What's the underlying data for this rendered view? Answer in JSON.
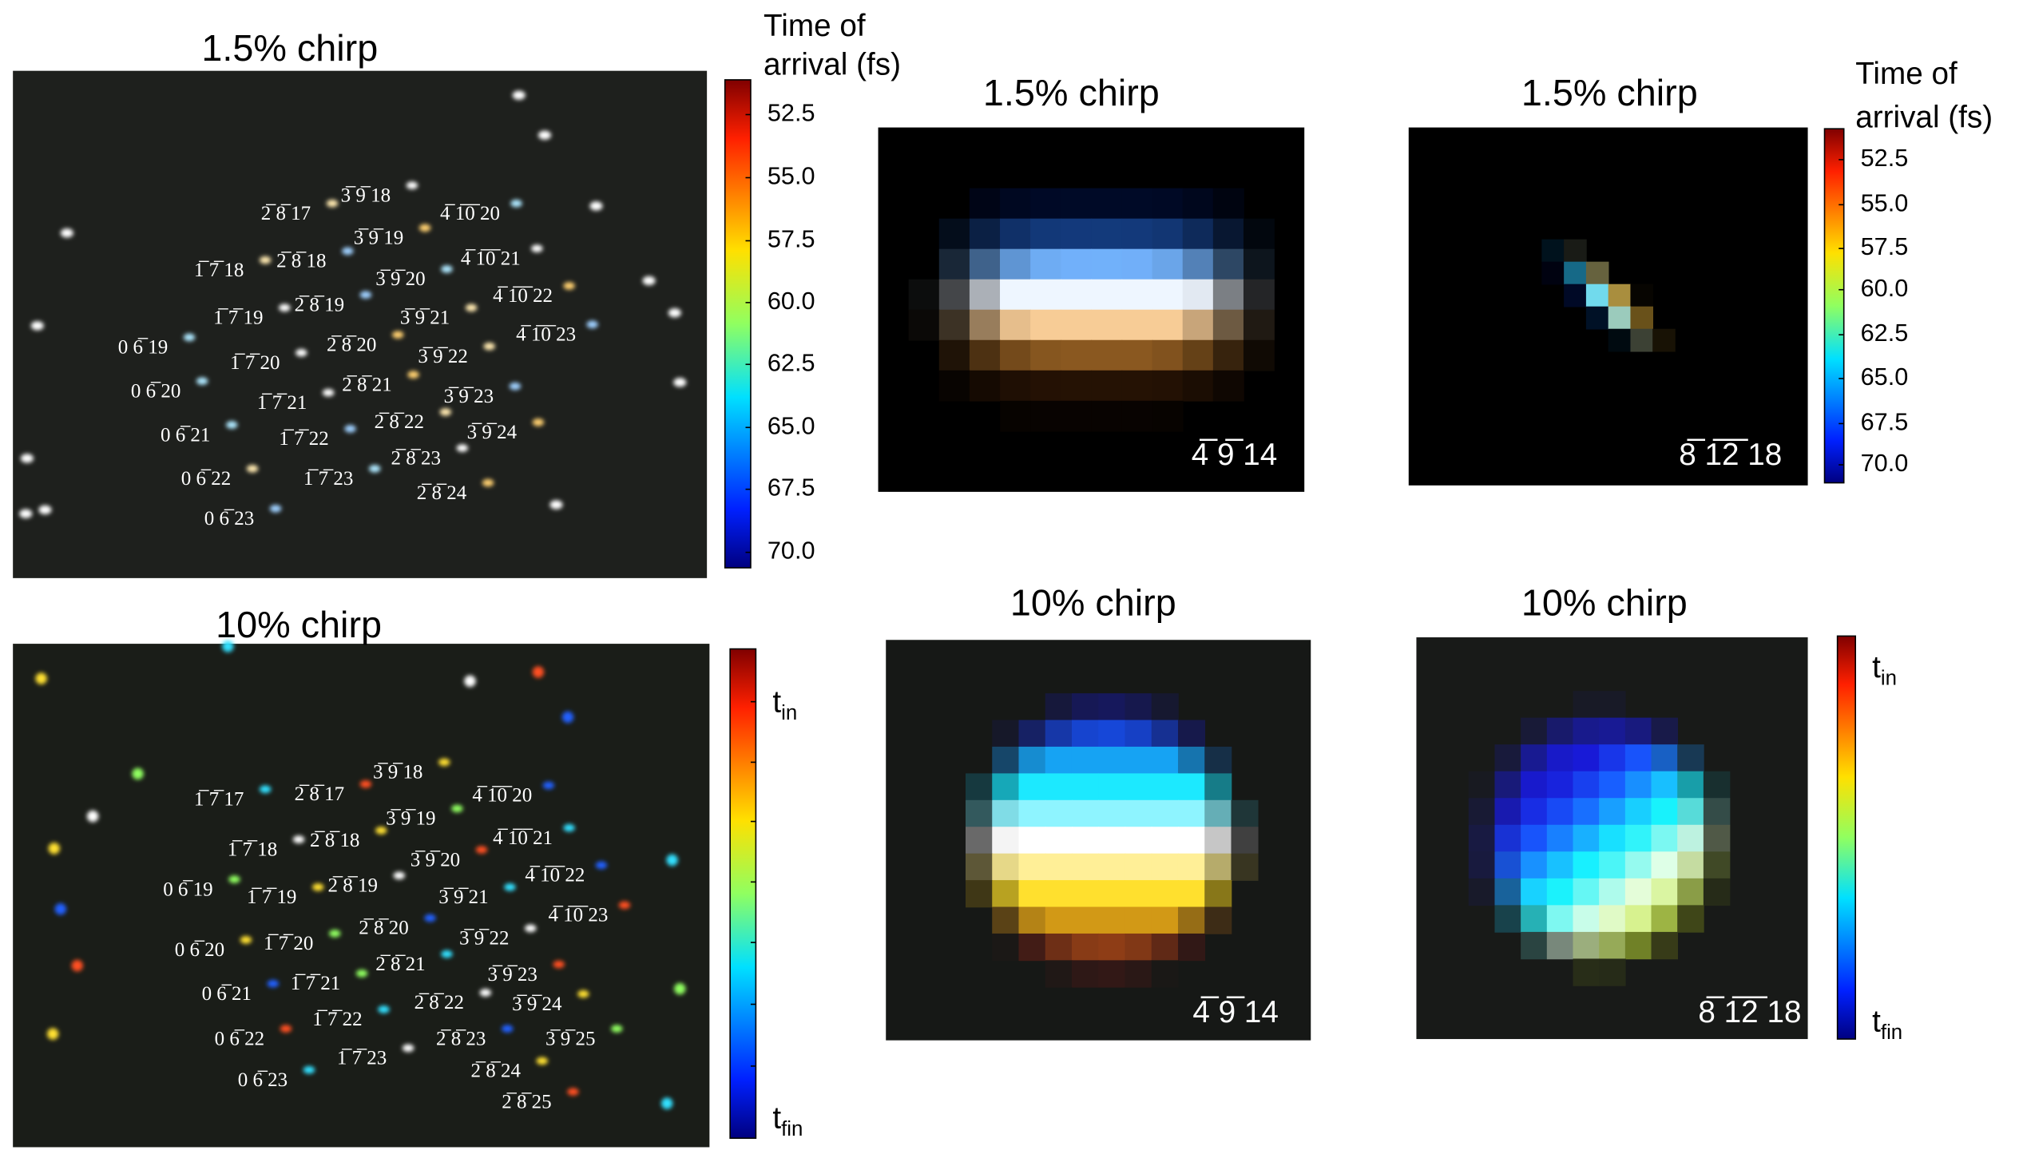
{
  "panels": [
    {
      "title": "1.5% chirp",
      "spots": [
        "3̅ 9̅ 18",
        "2̅ 8̅ 17",
        "4̅ 1̅0̅ 20",
        "3̅ 9̅ 19",
        "2̅ 8̅ 18",
        "4̅ 1̅0̅ 21",
        "1̅ 7̅ 18",
        "3̅ 9̅ 20",
        "4̅ 1̅0̅ 22",
        "2̅ 8̅ 19",
        "1̅ 7̅ 19",
        "3̅ 9̅ 21",
        "0 6̅ 19",
        "2̅ 8̅ 20",
        "4̅ 1̅0̅ 23",
        "1̅ 7̅ 20",
        "3̅ 9̅ 22",
        "0 6̅ 20",
        "2̅ 8̅ 21",
        "3̅ 9̅ 23",
        "1̅ 7̅ 21",
        "2̅ 8̅ 22",
        "0 6̅ 21",
        "3̅ 9̅ 24",
        "1̅ 7̅ 22",
        "2̅ 8̅ 23",
        "0 6̅ 22",
        "1̅ 7̅ 23",
        "2̅ 8̅ 24",
        "0 6̅ 23"
      ]
    },
    {
      "title": "10% chirp",
      "spots": [
        "3̅ 9̅ 18",
        "1̅ 7̅ 17",
        "2̅ 8̅ 17",
        "4̅ 1̅0̅ 20",
        "3̅ 9̅ 19",
        "1̅ 7̅ 18",
        "2̅ 8̅ 18",
        "4̅ 1̅0̅ 21",
        "3̅ 9̅ 20",
        "4̅ 1̅0̅ 22",
        "0 6̅ 19",
        "2̅ 8̅ 19",
        "1̅ 7̅ 19",
        "3̅ 9̅ 21",
        "4̅ 1̅0̅ 23",
        "2̅ 8̅ 20",
        "1̅ 7̅ 20",
        "3̅ 9̅ 22",
        "0 6̅ 20",
        "2̅ 8̅ 21",
        "3̅ 9̅ 23",
        "0 6̅ 21",
        "1̅ 7̅ 21",
        "2̅ 8̅ 22",
        "3̅ 9̅ 24",
        "1̅ 7̅ 22",
        "0 6̅ 22",
        "2̅ 8̅ 23",
        "3̅ 9̅ 25",
        "1̅ 7̅ 23",
        "2̅ 8̅ 24",
        "0 6̅ 23",
        "2̅ 8̅ 25"
      ]
    },
    {
      "title": "1.5% chirp",
      "label": "4̅ 9̅ 14"
    },
    {
      "title": "1.5% chirp",
      "label": "8̅ 1̅2̅ 18"
    },
    {
      "title": "10% chirp",
      "label": "4̅ 9̅ 14"
    },
    {
      "title": "10% chirp",
      "label": "8̅ 1̅2̅ 18"
    }
  ],
  "colorbars": [
    {
      "title": [
        "Time of",
        "arrival (fs)"
      ],
      "ticks": [
        "52.5",
        "55.0",
        "57.5",
        "60.0",
        "62.5",
        "65.0",
        "67.5",
        "70.0"
      ]
    },
    {
      "labels": [
        {
          "main": "t",
          "sub": "in"
        },
        {
          "main": "t",
          "sub": "fin"
        }
      ]
    },
    {
      "title": [
        "Time of",
        "arrival (fs)"
      ],
      "ticks": [
        "52.5",
        "55.0",
        "57.5",
        "60.0",
        "62.5",
        "65.0",
        "67.5",
        "70.0"
      ]
    },
    {
      "labels": [
        {
          "main": "t",
          "sub": "in"
        },
        {
          "main": "t",
          "sub": "fin"
        }
      ]
    }
  ]
}
